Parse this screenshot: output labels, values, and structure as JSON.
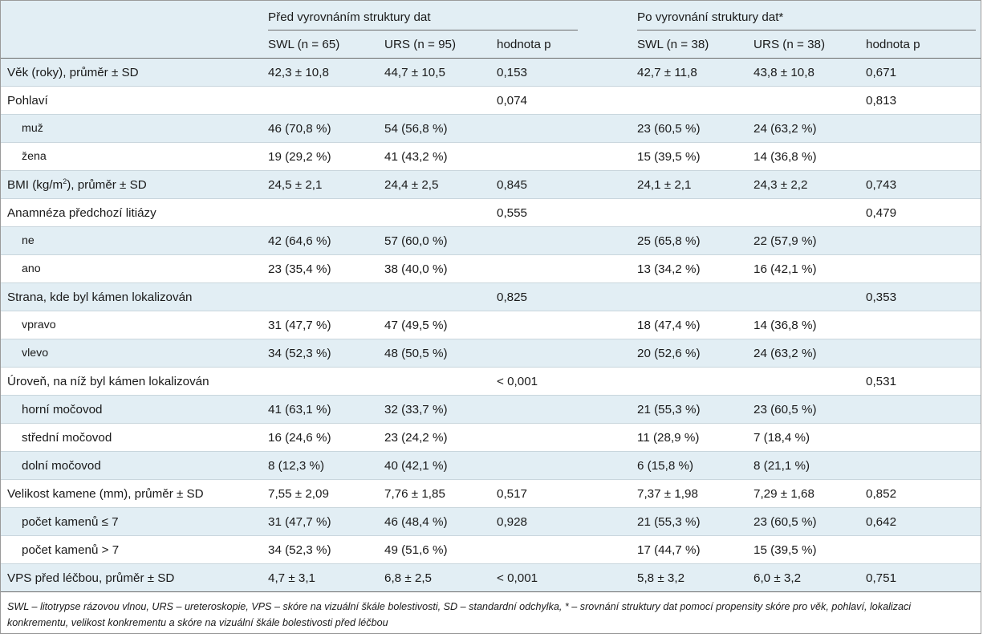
{
  "header": {
    "group_before": "Před vyrovnáním struktury dat",
    "group_after": "Po vyrovnání struktury dat*",
    "columns": [
      "SWL (n = 65)",
      "URS (n = 95)",
      "hodnota p",
      "SWL (n = 38)",
      "URS (n = 38)",
      "hodnota p"
    ]
  },
  "rows": [
    {
      "label": "Věk (roky), průměr ± SD",
      "indent": false,
      "cells": [
        "42,3 ± 10,8",
        "44,7 ± 10,5",
        "0,153",
        "42,7 ± 11,8",
        "43,8 ± 10,8",
        "0,671"
      ]
    },
    {
      "label": "Pohlaví",
      "indent": false,
      "cells": [
        "",
        "",
        "0,074",
        "",
        "",
        "0,813"
      ]
    },
    {
      "label": "muž",
      "indent": true,
      "cells": [
        "46 (70,8 %)",
        "54 (56,8 %)",
        "",
        "23 (60,5 %)",
        "24 (63,2 %)",
        ""
      ]
    },
    {
      "label": "žena",
      "indent": true,
      "cells": [
        "19 (29,2 %)",
        "41 (43,2 %)",
        "",
        "15 (39,5 %)",
        "14 (36,8 %)",
        ""
      ]
    },
    {
      "label_pre": "BMI (kg/m",
      "label_sup": "2",
      "label_post": "), průměr ± SD",
      "indent": false,
      "cells": [
        "24,5 ± 2,1",
        "24,4 ± 2,5",
        "0,845",
        "24,1 ± 2,1",
        "24,3 ± 2,2",
        "0,743"
      ]
    },
    {
      "label": "Anamnéza předchozí litiázy",
      "indent": false,
      "cells": [
        "",
        "",
        "0,555",
        "",
        "",
        "0,479"
      ]
    },
    {
      "label": "ne",
      "indent": true,
      "cells": [
        "42 (64,6 %)",
        "57 (60,0 %)",
        "",
        "25 (65,8 %)",
        "22 (57,9 %)",
        ""
      ]
    },
    {
      "label": "ano",
      "indent": true,
      "cells": [
        "23 (35,4 %)",
        "38 (40,0 %)",
        "",
        "13 (34,2 %)",
        "16 (42,1 %)",
        ""
      ]
    },
    {
      "label": "Strana, kde byl kámen lokalizován",
      "indent": false,
      "cells": [
        "",
        "",
        "0,825",
        "",
        "",
        "0,353"
      ]
    },
    {
      "label": "vpravo",
      "indent": true,
      "cells": [
        "31 (47,7 %)",
        "47 (49,5 %)",
        "",
        "18 (47,4 %)",
        "14 (36,8 %)",
        ""
      ]
    },
    {
      "label": "vlevo",
      "indent": true,
      "cells": [
        "34 (52,3 %)",
        "48 (50,5 %)",
        "",
        "20 (52,6 %)",
        "24 (63,2 %)",
        ""
      ]
    },
    {
      "label": "Úroveň, na níž byl kámen lokalizován",
      "indent": false,
      "cells": [
        "",
        "",
        "< 0,001",
        "",
        "",
        "0,531"
      ]
    },
    {
      "label": "horní močovod",
      "indent": true,
      "cells": [
        "41 (63,1 %)",
        "32 (33,7 %)",
        "",
        "21 (55,3 %)",
        "23 (60,5 %)",
        ""
      ]
    },
    {
      "label": "střední močovod",
      "indent": true,
      "cells": [
        "16 (24,6 %)",
        "23 (24,2 %)",
        "",
        "11 (28,9 %)",
        "7 (18,4 %)",
        ""
      ]
    },
    {
      "label": "dolní močovod",
      "indent": true,
      "cells": [
        "8 (12,3 %)",
        "40 (42,1 %)",
        "",
        "6 (15,8 %)",
        "8 (21,1 %)",
        ""
      ]
    },
    {
      "label": "Velikost kamene (mm), průměr ± SD",
      "indent": false,
      "cells": [
        "7,55 ± 2,09",
        "7,76 ± 1,85",
        "0,517",
        "7,37 ± 1,98",
        "7,29 ± 1,68",
        "0,852"
      ]
    },
    {
      "label": "počet kamenů ≤ 7",
      "indent": true,
      "cells": [
        "31 (47,7 %)",
        "46 (48,4 %)",
        "0,928",
        "21 (55,3 %)",
        "23 (60,5 %)",
        "0,642"
      ]
    },
    {
      "label": "počet kamenů > 7",
      "indent": true,
      "cells": [
        "34 (52,3 %)",
        "49 (51,6 %)",
        "",
        "17 (44,7 %)",
        "15 (39,5 %)",
        ""
      ]
    },
    {
      "label": "VPS před léčbou, průměr ± SD",
      "indent": false,
      "cells": [
        "4,7 ± 3,1",
        "6,8 ± 2,5",
        "< 0,001",
        "5,8 ± 3,2",
        "6,0 ± 3,2",
        "0,751"
      ]
    }
  ],
  "footnote": "SWL – litotrypse rázovou vlnou, URS – ureteroskopie, VPS – skóre na vizuální škále bolestivosti, SD – standardní odchylka, * – srovnání struktury dat pomocí propensity skóre pro věk, pohlaví, lokalizaci konkrementu, velikost konkrementu a skóre na vizuální škále bolestivosti před léčbou"
}
